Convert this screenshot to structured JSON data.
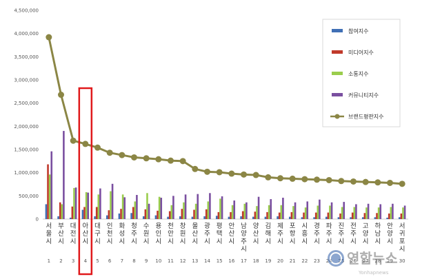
{
  "chart_data": {
    "type": "bar",
    "ylim": [
      0,
      4500000
    ],
    "yticks": [
      "0",
      "500,000",
      "1,000,000",
      "1,500,000",
      "2,000,000",
      "2,500,000",
      "3,000,000",
      "3,500,000",
      "4,000,000",
      "4,500,000"
    ],
    "categories": [
      "서울시",
      "부산시",
      "대전시",
      "아산시",
      "대구시",
      "인천시",
      "화성시",
      "청주시",
      "수원시",
      "용인시",
      "천안시",
      "창원시",
      "울산시",
      "광주시",
      "평택시",
      "안산시",
      "남양주시",
      "양산시",
      "김해시",
      "제주시",
      "포항시",
      "시흥시",
      "경주시",
      "파주시",
      "진주시",
      "전주시",
      "고양시",
      "하남시",
      "안양시",
      "서귀포시"
    ],
    "ranks": [
      "1",
      "2",
      "3",
      "4",
      "5",
      "6",
      "7",
      "8",
      "9",
      "10",
      "11",
      "12",
      "13",
      "14",
      "15",
      "16",
      "17",
      "18",
      "19",
      "20",
      "21",
      "22",
      "23",
      "24",
      "25",
      "26",
      "27",
      "28",
      "29",
      "30"
    ],
    "series": [
      {
        "name": "참여지수",
        "type": "bar",
        "color": "#3f6fb5",
        "values": [
          320000,
          60000,
          30000,
          200000,
          60000,
          80000,
          120000,
          130000,
          60000,
          80000,
          50000,
          60000,
          50000,
          60000,
          70000,
          50000,
          60000,
          50000,
          50000,
          60000,
          50000,
          40000,
          40000,
          50000,
          40000,
          40000,
          40000,
          40000,
          30000,
          40000
        ]
      },
      {
        "name": "미디어지수",
        "type": "bar",
        "color": "#c0392b",
        "values": [
          1180000,
          360000,
          270000,
          260000,
          260000,
          190000,
          220000,
          260000,
          210000,
          180000,
          170000,
          220000,
          200000,
          210000,
          150000,
          150000,
          170000,
          160000,
          150000,
          140000,
          150000,
          140000,
          140000,
          140000,
          120000,
          140000,
          130000,
          130000,
          120000,
          120000
        ]
      },
      {
        "name": "소통지수",
        "type": "bar",
        "color": "#9acd4c",
        "values": [
          960000,
          320000,
          670000,
          580000,
          530000,
          600000,
          530000,
          380000,
          560000,
          480000,
          300000,
          360000,
          330000,
          380000,
          440000,
          300000,
          330000,
          280000,
          300000,
          300000,
          280000,
          250000,
          290000,
          290000,
          260000,
          260000,
          250000,
          250000,
          260000,
          250000
        ]
      },
      {
        "name": "커뮤니티지수",
        "type": "bar",
        "color": "#7a4fa0",
        "values": [
          1460000,
          1900000,
          680000,
          570000,
          660000,
          760000,
          470000,
          520000,
          330000,
          460000,
          500000,
          530000,
          540000,
          560000,
          490000,
          400000,
          360000,
          480000,
          430000,
          460000,
          360000,
          380000,
          420000,
          360000,
          370000,
          320000,
          330000,
          320000,
          330000,
          290000
        ]
      },
      {
        "name": "브랜드평판지수",
        "type": "line",
        "color": "#8b8645",
        "values": [
          3920000,
          2680000,
          1690000,
          1620000,
          1540000,
          1430000,
          1380000,
          1330000,
          1310000,
          1290000,
          1260000,
          1250000,
          1080000,
          1020000,
          1010000,
          980000,
          960000,
          950000,
          900000,
          880000,
          870000,
          860000,
          850000,
          840000,
          820000,
          810000,
          800000,
          790000,
          780000,
          760000
        ]
      }
    ],
    "legend_position": "top-right",
    "highlight_category": "아산시",
    "highlight_color": "#e0191b"
  },
  "watermark": {
    "logo_text": "연합뉴스",
    "sub_text": "Yonhapnews"
  }
}
